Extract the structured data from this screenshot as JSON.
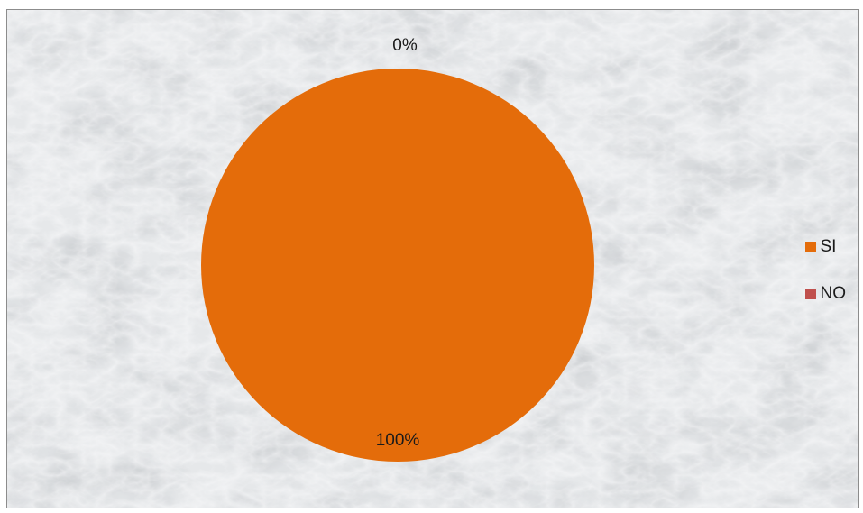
{
  "chart_data": {
    "type": "pie",
    "categories": [
      "SI",
      "NO"
    ],
    "values": [
      100,
      0
    ],
    "data_labels": [
      "100%",
      "0%"
    ],
    "colors": [
      "#e46c0a",
      "#c0504d"
    ],
    "legend_position": "right",
    "title": ""
  },
  "background": {
    "style": "marble-texture",
    "base_color": "#e4e6e8"
  }
}
